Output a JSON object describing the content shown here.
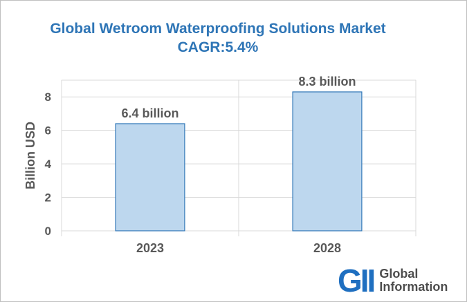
{
  "title_line1": "Global Wetroom Waterproofing Solutions Market",
  "title_line2": "CAGR:5.4%",
  "logo": {
    "mark": "GII",
    "text_line1": "Global",
    "text_line2": "Information"
  },
  "colors": {
    "title": "#2e75b6",
    "bar_fill": "#bdd7ee",
    "bar_stroke": "#2e75b6",
    "grid": "#d9d9d9",
    "axis_text": "#595959"
  },
  "chart_data": {
    "type": "bar",
    "title": "Global Wetroom Waterproofing Solutions Market CAGR:5.4%",
    "categories": [
      "2023",
      "2028"
    ],
    "values": [
      6.4,
      8.3
    ],
    "data_labels": [
      "6.4 billion",
      "8.3 billion"
    ],
    "xlabel": "",
    "ylabel": "Billion USD",
    "ylim": [
      0,
      9
    ],
    "yticks": [
      0,
      2,
      4,
      6,
      8
    ],
    "grid": true,
    "legend": "none"
  }
}
